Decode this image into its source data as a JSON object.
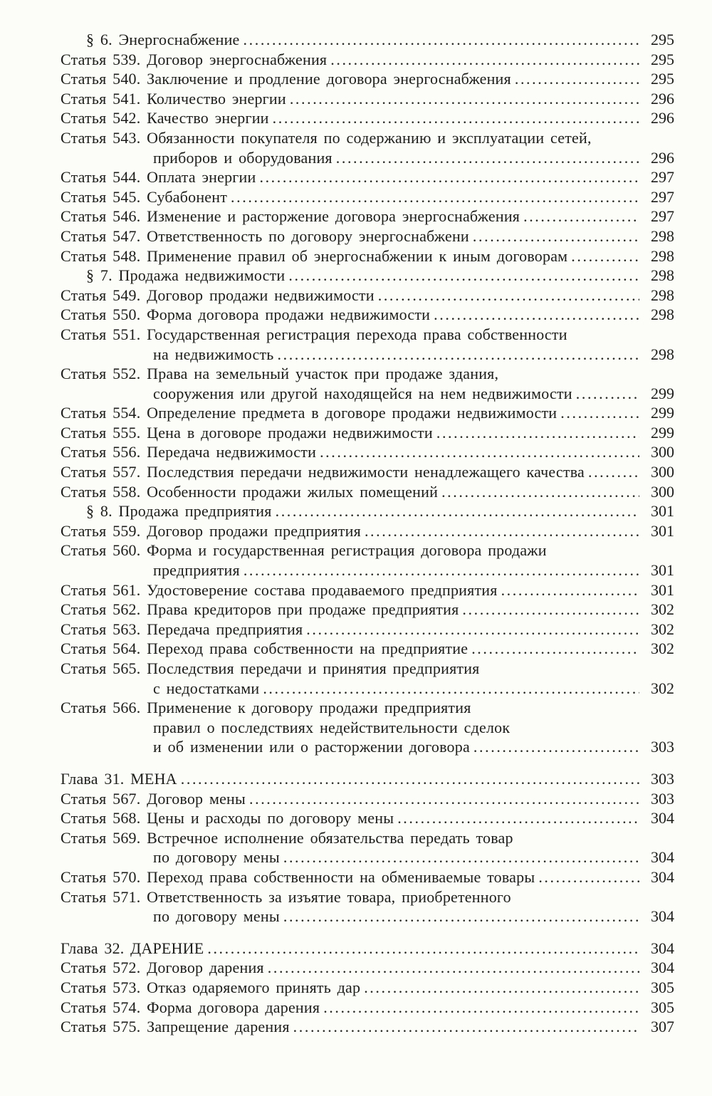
{
  "page": {
    "background": "#fcfcf8",
    "text_color": "#1d1d1b",
    "dot_color": "#242422"
  },
  "toc": {
    "entries": [
      {
        "kind": "section",
        "prefix": "§ 6.",
        "lines": [
          "Энергоснабжение"
        ],
        "page": "295"
      },
      {
        "kind": "article",
        "prefix": "Статья 539.",
        "lines": [
          "Договор энергоснабжения"
        ],
        "page": "295"
      },
      {
        "kind": "article",
        "prefix": "Статья 540.",
        "lines": [
          "Заключение и продление договора энергоснабжения"
        ],
        "page": "295"
      },
      {
        "kind": "article",
        "prefix": "Статья 541.",
        "lines": [
          "Количество энергии"
        ],
        "page": "296"
      },
      {
        "kind": "article",
        "prefix": "Статья 542.",
        "lines": [
          "Качество энергии"
        ],
        "page": "296"
      },
      {
        "kind": "article",
        "prefix": "Статья 543.",
        "lines": [
          "Обязанности покупателя по содержанию и эксплуатации сетей,",
          "приборов и оборудования"
        ],
        "page": "296"
      },
      {
        "kind": "article",
        "prefix": "Статья 544.",
        "lines": [
          "Оплата энергии"
        ],
        "page": "297"
      },
      {
        "kind": "article",
        "prefix": "Статья 545.",
        "lines": [
          "Субабонент"
        ],
        "page": "297"
      },
      {
        "kind": "article",
        "prefix": "Статья 546.",
        "lines": [
          "Изменение и расторжение договора энергоснабжения"
        ],
        "page": "297"
      },
      {
        "kind": "article",
        "prefix": "Статья 547.",
        "lines": [
          "Ответственность по договору энергоснабжени"
        ],
        "page": "298"
      },
      {
        "kind": "article",
        "prefix": "Статья 548.",
        "lines": [
          "Применение правил об энергоснабжении к иным договорам"
        ],
        "page": "298"
      },
      {
        "kind": "section",
        "prefix": "§ 7.",
        "lines": [
          "Продажа недвижимости"
        ],
        "page": "298"
      },
      {
        "kind": "article",
        "prefix": "Статья 549.",
        "lines": [
          "Договор продажи недвижимости"
        ],
        "page": "298"
      },
      {
        "kind": "article",
        "prefix": "Статья 550.",
        "lines": [
          "Форма договора продажи недвижимости"
        ],
        "page": "298"
      },
      {
        "kind": "article",
        "prefix": "Статья 551.",
        "lines": [
          "Государственная регистрация перехода права собственности",
          "на недвижимость"
        ],
        "page": "298"
      },
      {
        "kind": "article",
        "prefix": "Статья 552.",
        "lines": [
          "Права на земельный участок при продаже здания,",
          "сооружения или другой находящейся на нем недвижимости"
        ],
        "page": "299"
      },
      {
        "kind": "article",
        "prefix": "Статья 554.",
        "lines": [
          "Определение предмета в договоре продажи недвижимости"
        ],
        "page": "299"
      },
      {
        "kind": "article",
        "prefix": "Статья 555.",
        "lines": [
          "Цена в договоре продажи недвижимости"
        ],
        "page": "299"
      },
      {
        "kind": "article",
        "prefix": "Статья 556.",
        "lines": [
          "Передача недвижимости"
        ],
        "page": "300"
      },
      {
        "kind": "article",
        "prefix": "Статья 557.",
        "lines": [
          "Последствия передачи недвижимости ненадлежащего качества"
        ],
        "page": "300"
      },
      {
        "kind": "article",
        "prefix": "Статья 558.",
        "lines": [
          "Особенности продажи жилых помещений"
        ],
        "page": "300"
      },
      {
        "kind": "section",
        "prefix": "§ 8.",
        "lines": [
          "Продажа предприятия"
        ],
        "page": "301"
      },
      {
        "kind": "article",
        "prefix": "Статья 559.",
        "lines": [
          "Договор продажи предприятия"
        ],
        "page": "301"
      },
      {
        "kind": "article",
        "prefix": "Статья 560.",
        "lines": [
          "Форма и государственная регистрация договора продажи",
          "предприятия"
        ],
        "page": "301"
      },
      {
        "kind": "article",
        "prefix": "Статья 561.",
        "lines": [
          "Удостоверение состава продаваемого предприятия"
        ],
        "page": "301"
      },
      {
        "kind": "article",
        "prefix": "Статья 562.",
        "lines": [
          "Права кредиторов при продаже предприятия"
        ],
        "page": "302"
      },
      {
        "kind": "article",
        "prefix": "Статья 563.",
        "lines": [
          "Передача предприятия"
        ],
        "page": "302"
      },
      {
        "kind": "article",
        "prefix": "Статья 564.",
        "lines": [
          "Переход права собственности на предприятие"
        ],
        "page": "302"
      },
      {
        "kind": "article",
        "prefix": "Статья 565.",
        "lines": [
          "Последствия передачи и принятия предприятия",
          "с недостатками"
        ],
        "page": "302"
      },
      {
        "kind": "article",
        "prefix": "Статья 566.",
        "lines": [
          "Применение к договору продажи предприятия",
          "правил о последствиях недействительности сделок",
          "и об изменении или о расторжении договора"
        ],
        "page": "303"
      },
      {
        "kind": "chapter",
        "prefix": "Глава 31.",
        "lines": [
          "МЕНА"
        ],
        "page": "303",
        "gap_before": true
      },
      {
        "kind": "article",
        "prefix": "Статья 567.",
        "lines": [
          "Договор мены"
        ],
        "page": "303"
      },
      {
        "kind": "article",
        "prefix": "Статья 568.",
        "lines": [
          "Цены и расходы по договору мены"
        ],
        "page": "304"
      },
      {
        "kind": "article",
        "prefix": "Статья 569.",
        "lines": [
          "Встречное исполнение обязательства передать товар",
          "по договору мены"
        ],
        "page": "304"
      },
      {
        "kind": "article",
        "prefix": "Статья 570.",
        "lines": [
          "Переход права собственности на обмениваемые товары"
        ],
        "page": "304"
      },
      {
        "kind": "article",
        "prefix": "Статья 571.",
        "lines": [
          "Ответственность за изъятие товара, приобретенного",
          "по договору мены"
        ],
        "page": "304"
      },
      {
        "kind": "chapter",
        "prefix": "Глава 32.",
        "lines": [
          "ДАРЕНИЕ"
        ],
        "page": "304",
        "gap_before": true
      },
      {
        "kind": "article",
        "prefix": "Статья 572.",
        "lines": [
          "Договор дарения"
        ],
        "page": "304"
      },
      {
        "kind": "article",
        "prefix": "Статья 573.",
        "lines": [
          "Отказ одаряемого принять дар"
        ],
        "page": "305"
      },
      {
        "kind": "article",
        "prefix": "Статья 574.",
        "lines": [
          "Форма договора дарения"
        ],
        "page": "305"
      },
      {
        "kind": "article",
        "prefix": "Статья 575.",
        "lines": [
          "Запрещение дарения"
        ],
        "page": "307"
      }
    ]
  }
}
